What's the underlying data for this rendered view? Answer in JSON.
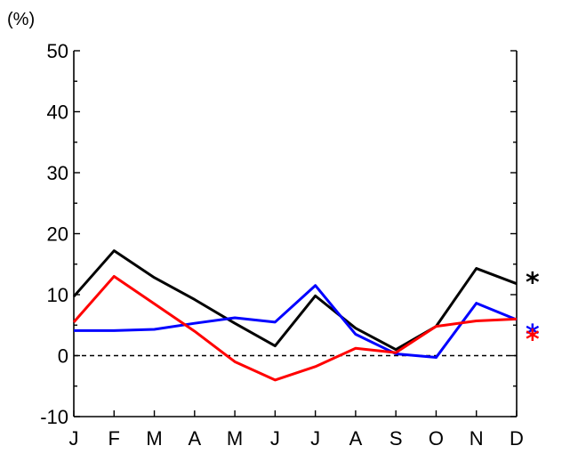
{
  "chart_data": {
    "type": "line",
    "unit_label": "(%)",
    "categories": [
      "J",
      "F",
      "M",
      "A",
      "M",
      "J",
      "J",
      "A",
      "S",
      "O",
      "N",
      "D"
    ],
    "ylim": [
      -10,
      50
    ],
    "yticks": [
      -10,
      0,
      10,
      20,
      30,
      40,
      50
    ],
    "ytick_labels": [
      "-10",
      "0",
      "10",
      "20",
      "30",
      "40",
      "50"
    ],
    "grid": false,
    "zero_line": "dashed",
    "series": [
      {
        "color": "#000000",
        "values": [
          9.7,
          17.2,
          12.8,
          9.2,
          5.3,
          1.6,
          9.8,
          4.5,
          1.0,
          4.8,
          14.3,
          11.8
        ],
        "marker": "*"
      },
      {
        "color": "#0000ff",
        "values": [
          4.1,
          4.1,
          4.3,
          5.3,
          6.2,
          5.5,
          11.5,
          3.5,
          0.3,
          -0.3,
          8.6,
          5.9
        ],
        "marker": "*"
      },
      {
        "color": "#ff0000",
        "values": [
          5.5,
          13.0,
          8.5,
          4.0,
          -1.0,
          -4.0,
          -1.8,
          1.2,
          0.5,
          4.8,
          5.7,
          6.0
        ],
        "marker": "*"
      }
    ]
  }
}
